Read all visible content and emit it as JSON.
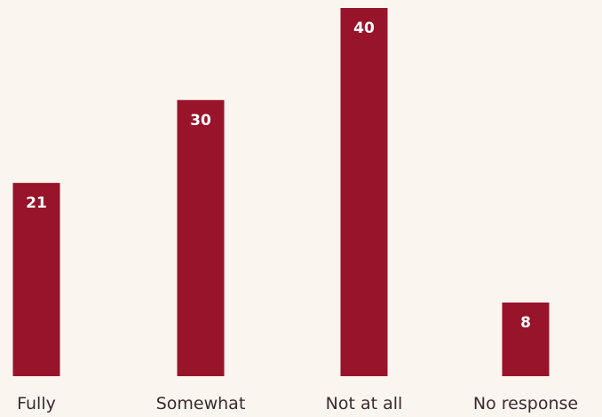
{
  "chart_data": {
    "type": "bar",
    "categories": [
      "Fully",
      "Somewhat",
      "Not at all",
      "No response"
    ],
    "values": [
      21,
      30,
      40,
      8
    ],
    "ylim": [
      0,
      40
    ],
    "grid": false,
    "colors": {
      "bar": "#98142a",
      "background": "#fbf5ef",
      "value_label": "#ffffff",
      "category_label": "#3a2a2e"
    }
  }
}
